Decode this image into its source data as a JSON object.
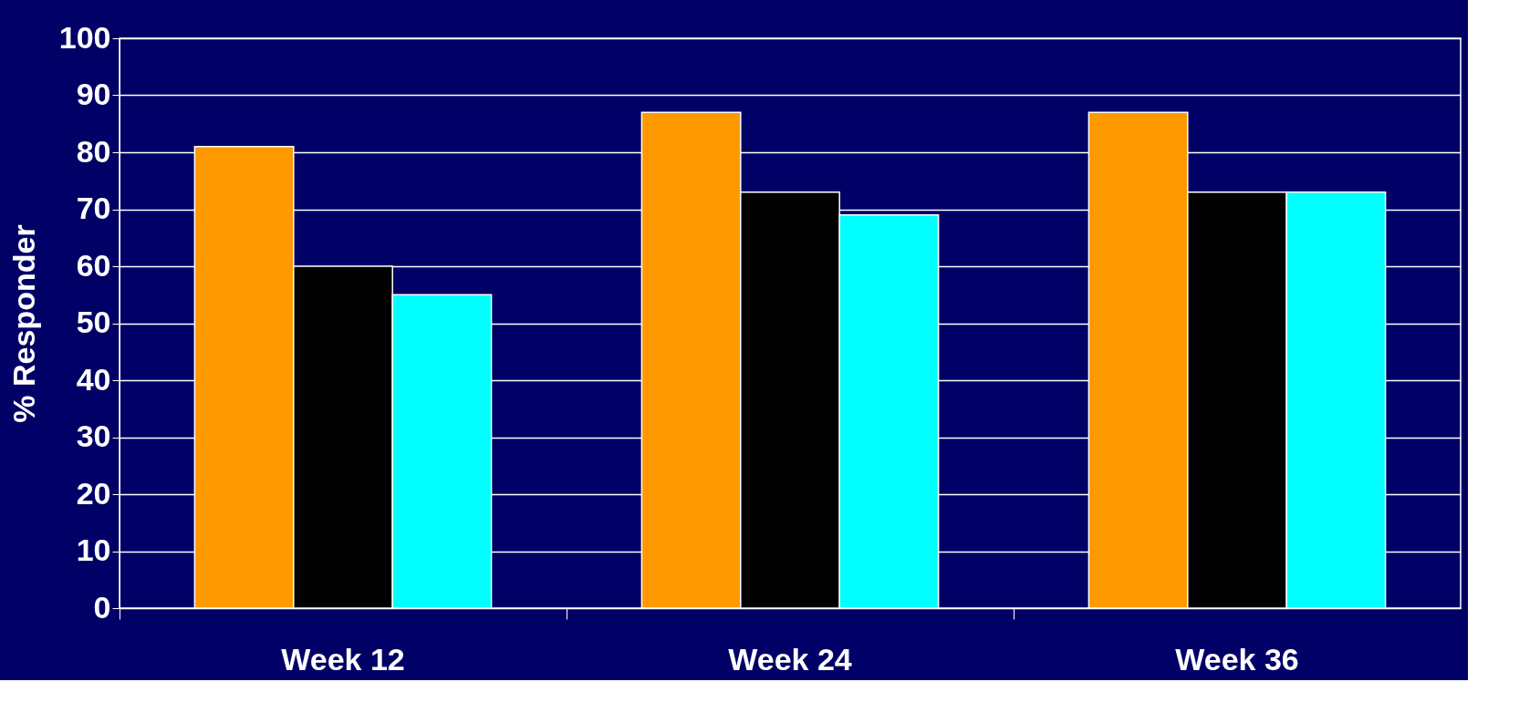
{
  "chart_data": {
    "type": "bar",
    "ylabel": "% Responder",
    "categories": [
      "Week 12",
      "Week 24",
      "Week 36"
    ],
    "series": [
      {
        "color": "#ff9900",
        "values": [
          81,
          87,
          87
        ]
      },
      {
        "color": "#000000",
        "values": [
          60,
          73,
          73
        ]
      },
      {
        "color": "#00ffff",
        "values": [
          55,
          69,
          73
        ]
      }
    ],
    "ylim": [
      0,
      100
    ],
    "yticks": [
      0,
      10,
      20,
      30,
      40,
      50,
      60,
      70,
      80,
      90,
      100
    ],
    "grid": "y",
    "legend": false
  }
}
